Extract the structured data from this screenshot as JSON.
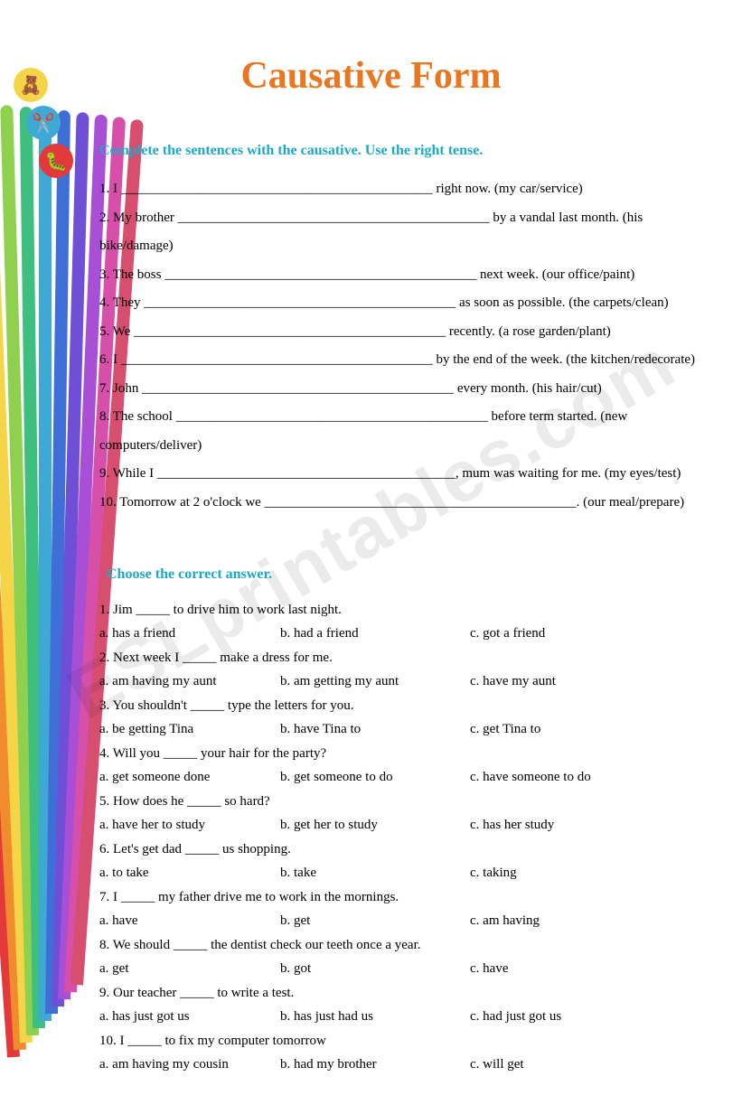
{
  "title": {
    "text": "Causative Form",
    "color": "#e87722"
  },
  "watermark": "ESLprintables.com",
  "instruction1": {
    "text": "Complete the sentences with the causative. Use the right tense.",
    "color": "#1ca9c9"
  },
  "instruction2": {
    "text": "Choose the correct answer.",
    "color": "#1ca9c9"
  },
  "exercise1": [
    "1. I ______________________________________________ right now. (my car/service)",
    "2. My brother ______________________________________________ by a vandal last month. (his bike/damage)",
    "3. The boss ______________________________________________ next week. (our office/paint)",
    "4. They ______________________________________________ as soon as possible. (the carpets/clean)",
    "5. We ______________________________________________ recently. (a rose garden/plant)",
    "6. I ______________________________________________ by the end of the week. (the kitchen/redecorate)",
    "7. John ______________________________________________ every month. (his hair/cut)",
    "8. The school ______________________________________________ before term started. (new computers/deliver)",
    "9. While I ____________________________________________, mum was waiting for me. (my eyes/test)",
    "10. Tomorrow at 2 o'clock we ______________________________________________. (our meal/prepare)"
  ],
  "mcq": [
    {
      "q": "1. Jim _____ to drive him to work last night.",
      "a": "a. has a friend",
      "b": "b. had a friend",
      "c": "c. got a friend"
    },
    {
      "q": "2. Next week I _____ make a dress for me.",
      "a": "a. am having my aunt",
      "b": "b. am getting my aunt",
      "c": "c. have my aunt"
    },
    {
      "q": "3. You shouldn't _____ type the letters for you.",
      "a": "a. be getting Tina",
      "b": "b. have Tina to",
      "c": "c. get Tina to"
    },
    {
      "q": "4. Will you _____ your hair for the party?",
      "a": "a. get someone done",
      "b": "b. get someone to do",
      "c": "c. have someone to do"
    },
    {
      "q": "5. How does he _____ so hard?",
      "a": "a. have her to study",
      "b": "b. get her to study",
      "c": "c. has her study"
    },
    {
      "q": "6. Let's get dad _____ us shopping.",
      "a": "a. to take",
      "b": "b. take",
      "c": "c. taking"
    },
    {
      "q": "7. I _____ my father drive me to work in the mornings.",
      "a": "a. have",
      "b": "b. get",
      "c": "c. am having"
    },
    {
      "q": "8. We should _____ the dentist check our teeth once a year.",
      "a": "a. get",
      "b": "b. got",
      "c": "c. have"
    },
    {
      "q": "9. Our teacher _____ to write a test.",
      "a": "a. has just got us",
      "b": "b. has just had us",
      "c": "c. had just got us"
    },
    {
      "q": "10. I _____ to fix my computer tomorrow",
      "a": "a. am having my cousin",
      "b": "b. had my brother",
      "c": "c. will get"
    }
  ],
  "rainbow_colors": [
    "#e23a3a",
    "#f08c2e",
    "#f5d547",
    "#8fd14f",
    "#3fbf7f",
    "#3fa9d6",
    "#3f6fd6",
    "#6f4fd6",
    "#a84fd6",
    "#d64fa8",
    "#d64f6f"
  ],
  "icons": [
    {
      "bg": "#f5d547",
      "glyph": "🧸"
    },
    {
      "bg": "#3fa9d6",
      "glyph": "✂️"
    },
    {
      "bg": "#e23a3a",
      "glyph": "🐛"
    }
  ]
}
